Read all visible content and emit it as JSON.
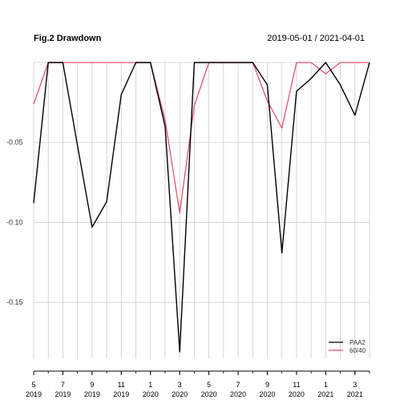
{
  "chart_data": {
    "type": "line",
    "title": "Fig.2 Drawdown",
    "date_range": "2019-05-01 / 2021-04-01",
    "x": [
      "2019-05",
      "2019-06",
      "2019-07",
      "2019-08",
      "2019-09",
      "2019-10",
      "2019-11",
      "2019-12",
      "2020-01",
      "2020-02",
      "2020-03",
      "2020-04",
      "2020-05",
      "2020-06",
      "2020-07",
      "2020-08",
      "2020-09",
      "2020-10",
      "2020-11",
      "2020-12",
      "2021-01",
      "2021-02",
      "2021-03",
      "2021-04"
    ],
    "series": [
      {
        "name": "PAA2",
        "color": "#000000",
        "values": [
          -0.088,
          0,
          0,
          -0.052,
          -0.103,
          -0.087,
          -0.02,
          0,
          0,
          -0.04,
          -0.181,
          0,
          0,
          0,
          0,
          0,
          -0.014,
          -0.119,
          -0.018,
          -0.01,
          0,
          -0.014,
          -0.033,
          0
        ]
      },
      {
        "name": "60/40",
        "color": "#DF536B",
        "values": [
          -0.026,
          0,
          0,
          0,
          0,
          0,
          0,
          0,
          0,
          -0.036,
          -0.094,
          -0.027,
          0,
          0,
          0,
          0,
          -0.024,
          -0.041,
          0,
          0,
          -0.007,
          0,
          0,
          0
        ]
      }
    ],
    "ylim": [
      -0.185,
      0
    ],
    "y_ticks": [
      {
        "value": -0.05,
        "label": "-0.05"
      },
      {
        "value": -0.1,
        "label": "-0.10"
      },
      {
        "value": -0.15,
        "label": "-0.15"
      }
    ],
    "x_ticks": [
      {
        "index": 0,
        "month": "5",
        "year": "2019"
      },
      {
        "index": 2,
        "month": "7",
        "year": "2019"
      },
      {
        "index": 4,
        "month": "9",
        "year": "2019"
      },
      {
        "index": 6,
        "month": "11",
        "year": "2019"
      },
      {
        "index": 8,
        "month": "1",
        "year": "2020"
      },
      {
        "index": 10,
        "month": "3",
        "year": "2020"
      },
      {
        "index": 12,
        "month": "5",
        "year": "2020"
      },
      {
        "index": 14,
        "month": "7",
        "year": "2020"
      },
      {
        "index": 16,
        "month": "9",
        "year": "2020"
      },
      {
        "index": 18,
        "month": "11",
        "year": "2020"
      },
      {
        "index": 20,
        "month": "1",
        "year": "2021"
      },
      {
        "index": 22,
        "month": "3",
        "year": "2021"
      }
    ],
    "grid": true,
    "legend_position": "bottom-right"
  }
}
